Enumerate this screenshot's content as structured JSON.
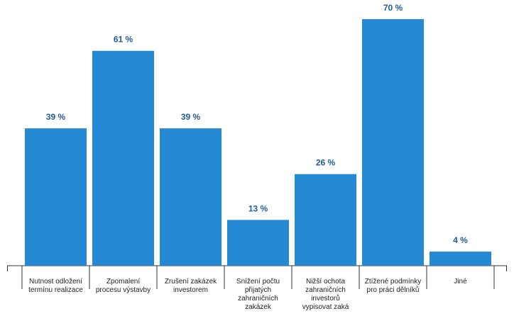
{
  "chart_data": {
    "type": "bar",
    "categories": [
      "Nutnost odložení termínu realizace",
      "Zpomalení procesu výstavby",
      "Zrušení zakázek investorem",
      "Snížení počtu přijatých zahraničních zakázek",
      "Nižší ochota zahraničních investorů vypisovat zaká",
      "Ztížené podmínky pro práci dělníků",
      "Jiné"
    ],
    "values": [
      39,
      61,
      39,
      13,
      26,
      70,
      4
    ],
    "value_labels": [
      "39 %",
      "61 %",
      "39 %",
      "13 %",
      "26 %",
      "70 %",
      "4 %"
    ],
    "color": "#2589d4",
    "ylim": [
      0,
      70
    ]
  }
}
